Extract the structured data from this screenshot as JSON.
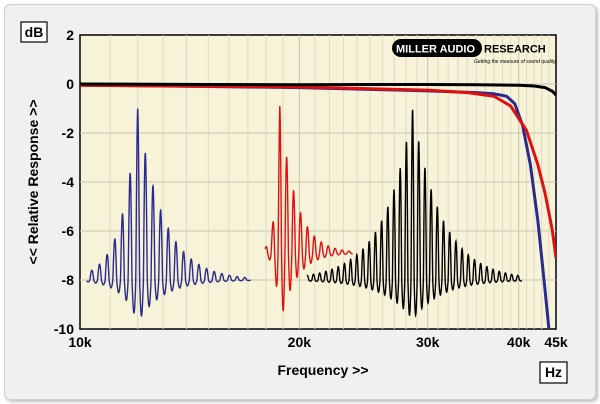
{
  "chart_data": {
    "type": "line",
    "title": "",
    "xlabel": "Frequency >>",
    "ylabel": "<< Relative Response >>",
    "x_unit": "Hz",
    "y_unit": "dB",
    "x_scale": "log",
    "xlim": [
      10000,
      45000
    ],
    "ylim": [
      -10,
      2
    ],
    "x_ticks": [
      10000,
      20000,
      30000,
      40000,
      45000
    ],
    "x_tick_labels": [
      "10k",
      "20k",
      "30k",
      "40k",
      "45k"
    ],
    "y_ticks": [
      2,
      0,
      -2,
      -4,
      -6,
      -8,
      -10
    ],
    "y_tick_labels": [
      "2",
      "0",
      "-2",
      "-4",
      "-6",
      "-8",
      "-10"
    ],
    "grid": true,
    "legend": "none",
    "brand": {
      "name": "MILLER AUDIO RESEARCH",
      "part1": "MILLER AUDIO",
      "part2": "RESEARCH",
      "tagline": "Getting the measure of sound quality"
    },
    "colors": {
      "plot_bg": "#f7f3d8",
      "black": "#000000",
      "blue": "#2a2a8c",
      "red": "#e01010"
    },
    "series": [
      {
        "color": "#000000",
        "x": [
          10000,
          15000,
          20000,
          25000,
          30000,
          35000,
          40000,
          42000,
          43500,
          44500,
          45000
        ],
        "y": [
          0.0,
          -0.02,
          -0.03,
          -0.02,
          -0.02,
          -0.03,
          -0.05,
          -0.08,
          -0.15,
          -0.3,
          -0.45
        ]
      },
      {
        "color": "#2a2a8c",
        "x": [
          10000,
          15000,
          20000,
          25000,
          30000,
          35000,
          37000,
          38500,
          39500,
          40500,
          41500,
          42500,
          43500,
          44000
        ],
        "y": [
          -0.05,
          -0.1,
          -0.15,
          -0.22,
          -0.28,
          -0.35,
          -0.4,
          -0.5,
          -0.8,
          -1.7,
          -3.3,
          -5.6,
          -8.5,
          -10.0
        ]
      },
      {
        "color": "#e01010",
        "x": [
          10000,
          20000,
          30000,
          34000,
          37000,
          39000,
          41000,
          42500,
          43500,
          44500,
          45000
        ],
        "y": [
          -0.05,
          -0.12,
          -0.25,
          -0.35,
          -0.5,
          -0.9,
          -1.9,
          -3.3,
          -4.5,
          -6.0,
          -7.1
        ]
      }
    ],
    "impulse_insets": [
      {
        "color": "#2a2a8c",
        "center_freq": 12000,
        "peak_db": -1.0,
        "baseline_db": -8.0,
        "trough_db": -9.7,
        "half_width": 0.155,
        "pre_len": 0.07,
        "post_len": 0.155,
        "decay": 0.035,
        "period": 0.0105,
        "pre_decay": 0.022
      },
      {
        "color": "#e01010",
        "center_freq": 18800,
        "peak_db": -0.9,
        "baseline_db": -6.9,
        "trough_db": -9.8,
        "half_width": 0.1,
        "pre_len": 0.02,
        "post_len": 0.1,
        "decay": 0.022,
        "period": 0.0095,
        "pre_decay": 0.006
      },
      {
        "color": "#000000",
        "center_freq": 28600,
        "peak_db": -1.0,
        "baseline_db": -8.0,
        "trough_db": -9.6,
        "half_width": 0.15,
        "pre_len": 0.145,
        "post_len": 0.15,
        "decay": 0.04,
        "period": 0.0085,
        "pre_decay": 0.04
      }
    ]
  }
}
